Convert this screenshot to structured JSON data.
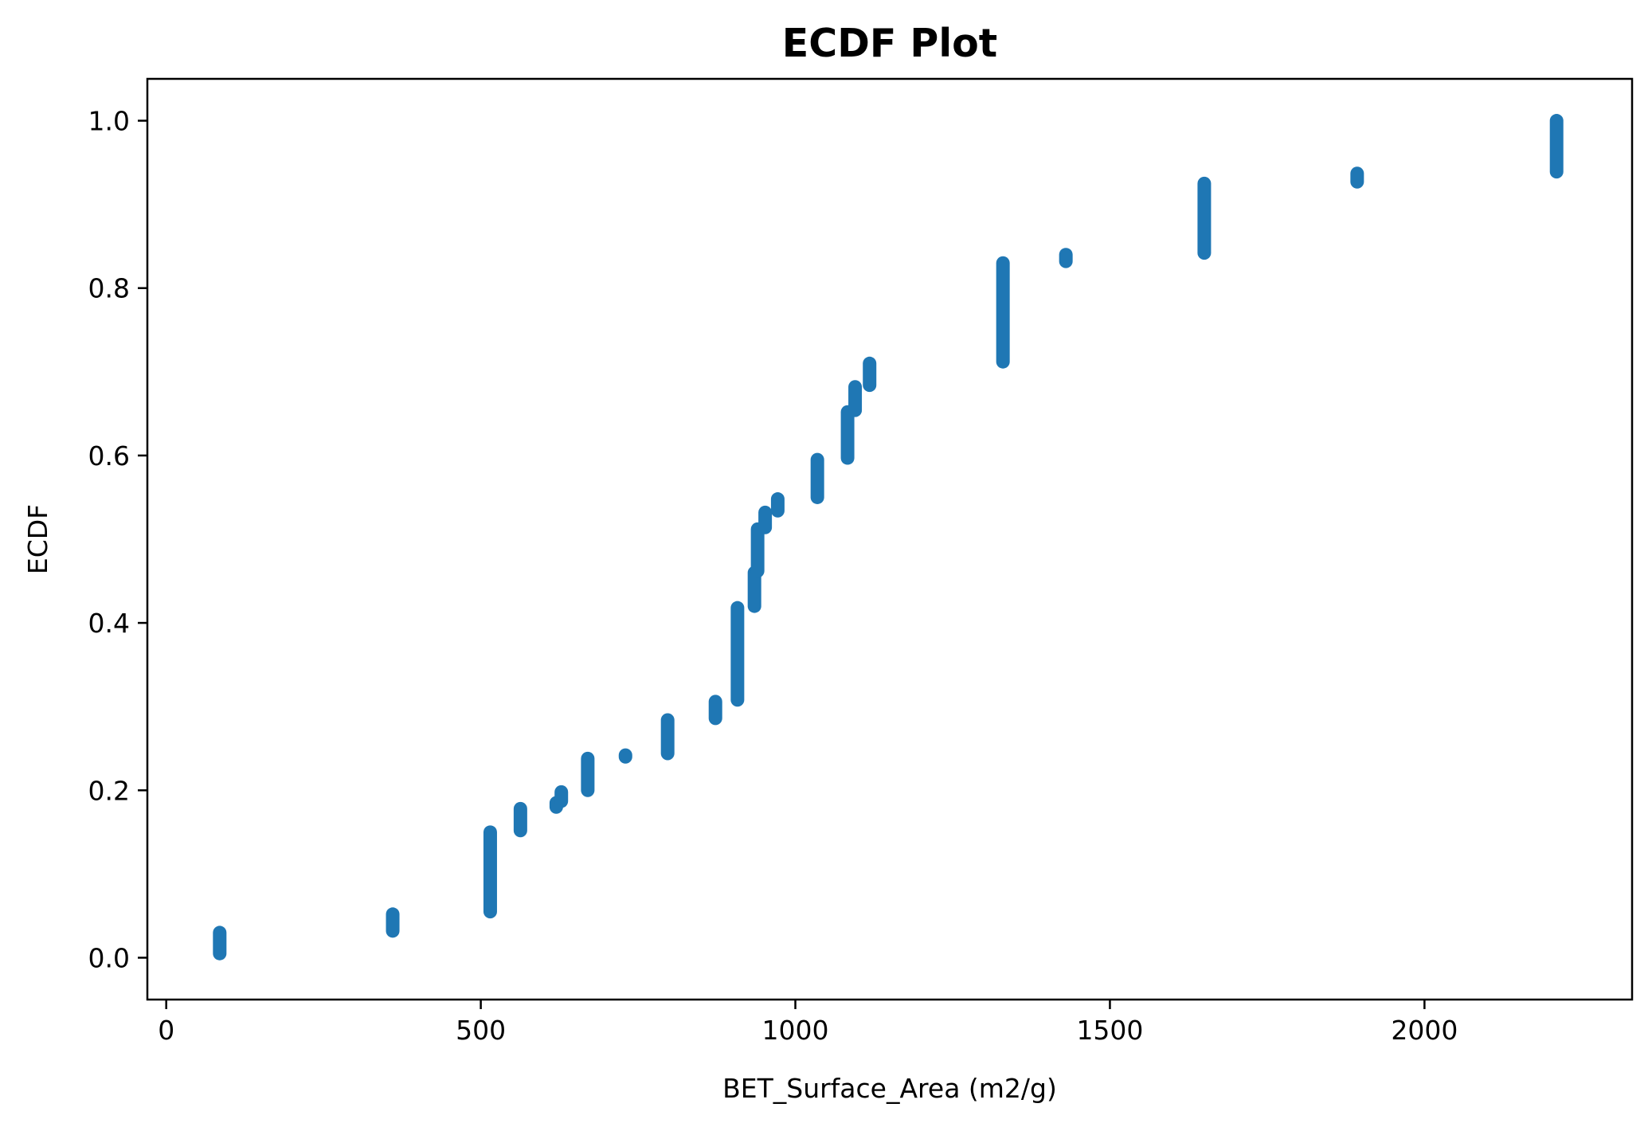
{
  "chart_data": {
    "type": "scatter",
    "title": "ECDF Plot",
    "xlabel": "BET_Surface_Area (m2/g)",
    "ylabel": "ECDF",
    "xlim": [
      -30,
      2330
    ],
    "ylim": [
      -0.05,
      1.05
    ],
    "xticks": [
      0,
      500,
      1000,
      1500,
      2000
    ],
    "yticks": [
      0.0,
      0.2,
      0.4,
      0.6,
      0.8,
      1.0
    ],
    "xtick_labels": [
      "0",
      "500",
      "1000",
      "1500",
      "2000"
    ],
    "ytick_labels": [
      "0.0",
      "0.2",
      "0.4",
      "0.6",
      "0.8",
      "1.0"
    ],
    "grid": false,
    "marker_color": "#1f77b4",
    "series": [
      {
        "groups": [
          {
            "x": 85,
            "y_from": 0.005,
            "y_to": 0.03
          },
          {
            "x": 360,
            "y_from": 0.032,
            "y_to": 0.052
          },
          {
            "x": 515,
            "y_from": 0.055,
            "y_to": 0.15
          },
          {
            "x": 563,
            "y_from": 0.152,
            "y_to": 0.178
          },
          {
            "x": 620,
            "y_from": 0.18,
            "y_to": 0.185
          },
          {
            "x": 628,
            "y_from": 0.187,
            "y_to": 0.198
          },
          {
            "x": 670,
            "y_from": 0.2,
            "y_to": 0.238
          },
          {
            "x": 730,
            "y_from": 0.24,
            "y_to": 0.242
          },
          {
            "x": 797,
            "y_from": 0.244,
            "y_to": 0.284
          },
          {
            "x": 873,
            "y_from": 0.286,
            "y_to": 0.306
          },
          {
            "x": 908,
            "y_from": 0.308,
            "y_to": 0.418
          },
          {
            "x": 935,
            "y_from": 0.42,
            "y_to": 0.46
          },
          {
            "x": 940,
            "y_from": 0.462,
            "y_to": 0.512
          },
          {
            "x": 952,
            "y_from": 0.514,
            "y_to": 0.532
          },
          {
            "x": 972,
            "y_from": 0.534,
            "y_to": 0.548
          },
          {
            "x": 1035,
            "y_from": 0.55,
            "y_to": 0.595
          },
          {
            "x": 1083,
            "y_from": 0.597,
            "y_to": 0.652
          },
          {
            "x": 1095,
            "y_from": 0.654,
            "y_to": 0.682
          },
          {
            "x": 1118,
            "y_from": 0.684,
            "y_to": 0.71
          },
          {
            "x": 1330,
            "y_from": 0.712,
            "y_to": 0.83
          },
          {
            "x": 1430,
            "y_from": 0.832,
            "y_to": 0.84
          },
          {
            "x": 1650,
            "y_from": 0.842,
            "y_to": 0.925
          },
          {
            "x": 1893,
            "y_from": 0.927,
            "y_to": 0.937
          },
          {
            "x": 2210,
            "y_from": 0.939,
            "y_to": 1.0
          }
        ]
      }
    ]
  }
}
